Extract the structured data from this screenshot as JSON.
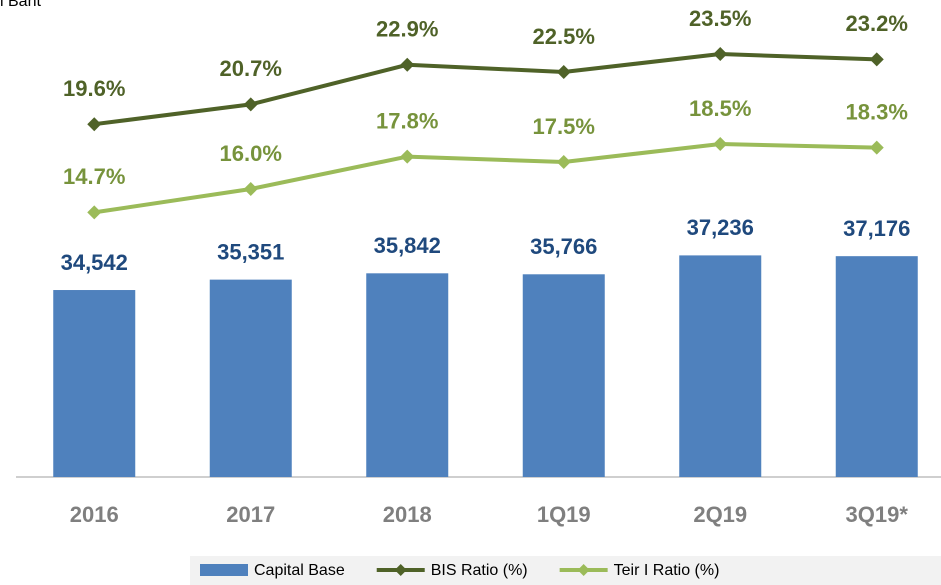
{
  "chart_data": {
    "type": "bar_line",
    "subtitle": "l Baht",
    "categories": [
      "2016",
      "2017",
      "2018",
      "1Q19",
      "2Q19",
      "3Q19*"
    ],
    "series": [
      {
        "name": "Capital Base",
        "type": "bar",
        "color": "#4f81bd",
        "values": [
          34542,
          35351,
          35842,
          35766,
          37236,
          37176
        ],
        "value_labels": [
          "34,542",
          "35,351",
          "35,842",
          "35,766",
          "37,236",
          "37,176"
        ]
      },
      {
        "name": "BIS Ratio (%)",
        "type": "line",
        "axis": "y2",
        "color": "#4f6228",
        "values": [
          19.6,
          20.7,
          22.9,
          22.5,
          23.5,
          23.2
        ],
        "value_labels": [
          "19.6%",
          "20.7%",
          "22.9%",
          "22.5%",
          "23.5%",
          "23.2%"
        ]
      },
      {
        "name": "Teir I Ratio (%)",
        "type": "line",
        "axis": "y2",
        "color": "#9bbb59",
        "values": [
          14.7,
          16.0,
          17.8,
          17.5,
          18.5,
          18.3
        ],
        "value_labels": [
          "14.7%",
          "16.0%",
          "17.8%",
          "17.5%",
          "18.5%",
          "18.3%"
        ]
      }
    ],
    "ylim": [
      20000,
      55000
    ],
    "y2lim": [
      0,
      25
    ],
    "legend": "bottom"
  }
}
